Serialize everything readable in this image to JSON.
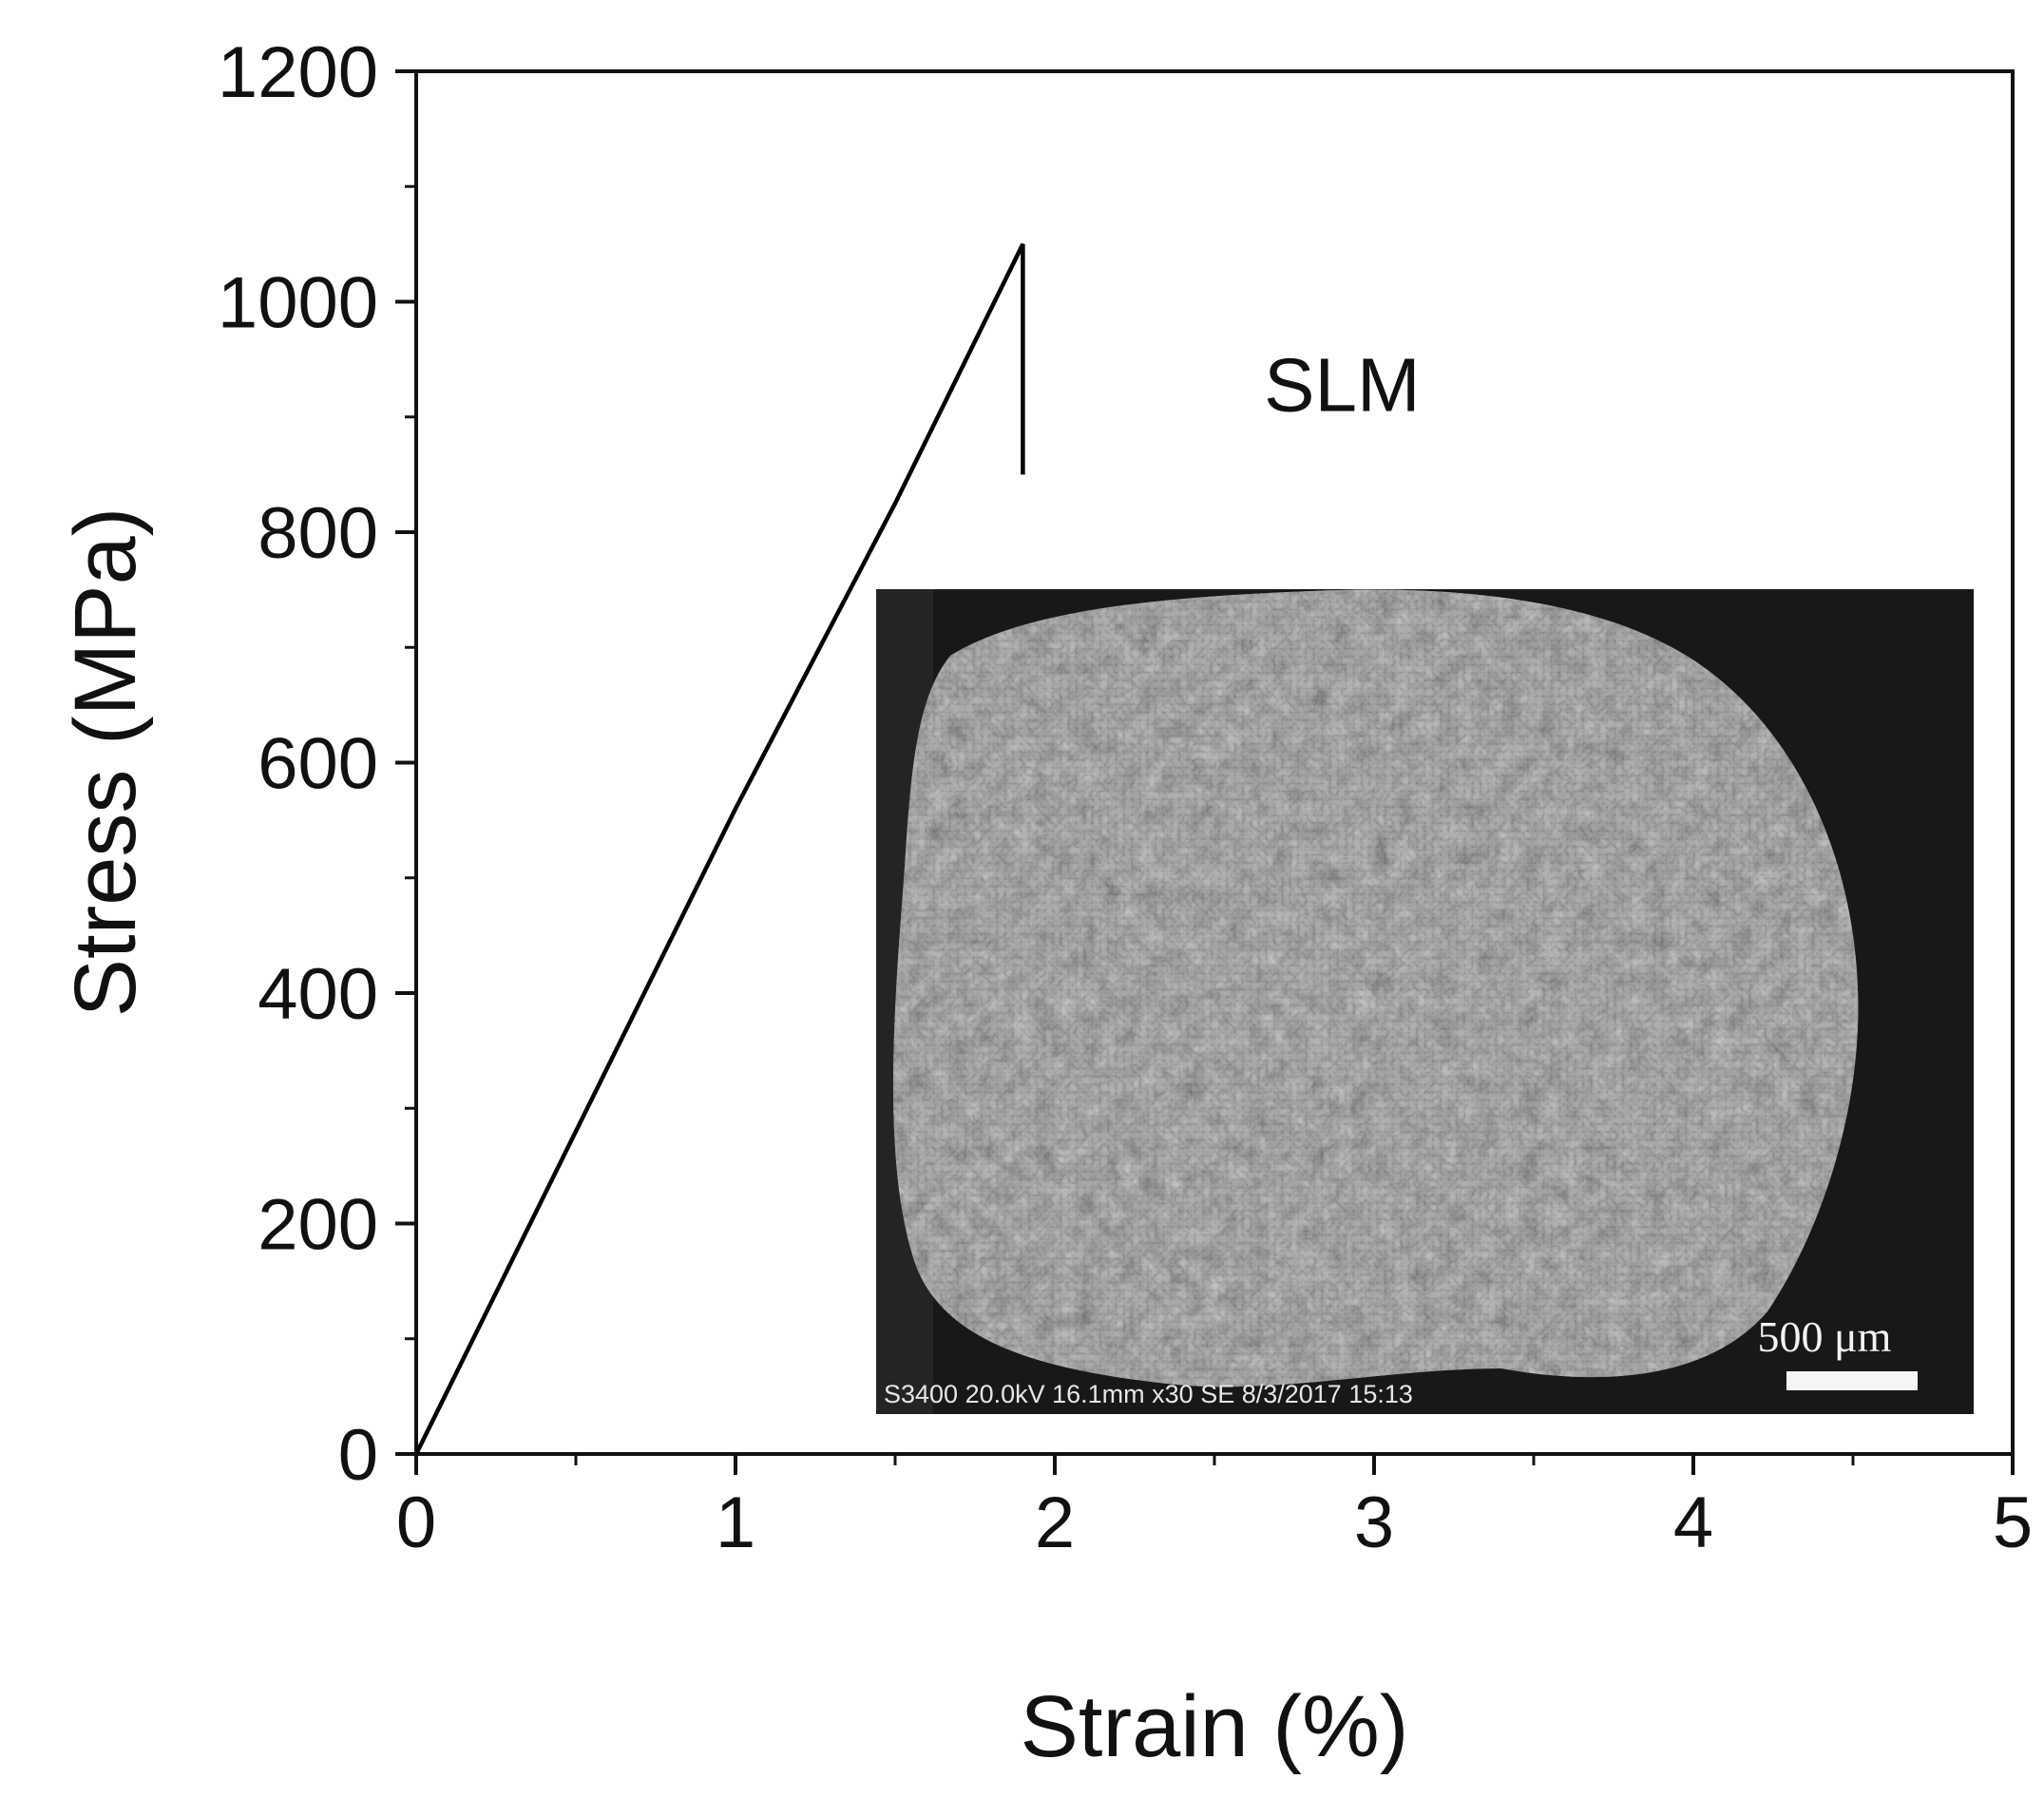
{
  "chart_data": {
    "type": "line",
    "title": "",
    "xlabel": "Strain (%)",
    "ylabel": "Stress (MPa)",
    "xlim": [
      0,
      5
    ],
    "ylim": [
      0,
      1200
    ],
    "x_ticks": [
      0,
      1,
      2,
      3,
      4,
      5
    ],
    "y_ticks": [
      0,
      200,
      400,
      600,
      800,
      1000,
      1200
    ],
    "x_tick_labels": [
      "0",
      "1",
      "2",
      "3",
      "4",
      "5"
    ],
    "y_tick_labels": [
      "0",
      "200",
      "400",
      "600",
      "800",
      "1000",
      "1200"
    ],
    "grid": false,
    "legend": "none",
    "series": [
      {
        "x": [
          0,
          0.5,
          1.0,
          1.5,
          1.9,
          1.9
        ],
        "y": [
          0,
          280,
          560,
          825,
          1050,
          850
        ],
        "color": "#000000"
      }
    ],
    "annotations": [
      {
        "text": "SLM",
        "x": 2.9,
        "y": 905
      }
    ],
    "inset": {
      "kind": "SEM fractograph",
      "metadata_text": "S3400 20.0kV 16.1mm x30 SE  8/3/2017 15:13",
      "scale_bar_label": "500 μm"
    }
  }
}
